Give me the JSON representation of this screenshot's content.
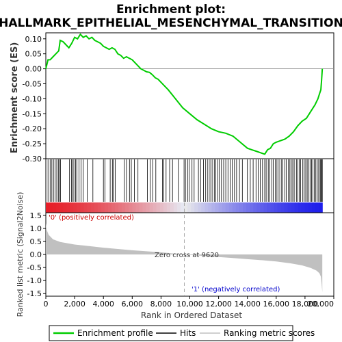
{
  "chart_data": {
    "type": "line",
    "title": "Enrichment plot:",
    "subtitle": "HALLMARK_EPITHELIAL_MESENCHYMAL_TRANSITION",
    "xlabel": "Rank in Ordered Dataset",
    "n_ranks": 19200,
    "xlim": [
      0,
      20000
    ],
    "x_ticks": [
      0,
      2000,
      4000,
      6000,
      8000,
      10000,
      12000,
      14000,
      16000,
      18000,
      20000
    ],
    "x_tick_labels": [
      "0",
      "2,000",
      "4,000",
      "6,000",
      "8,000",
      "10,000",
      "12,000",
      "14,000",
      "16,000",
      "18,000",
      "20,000"
    ],
    "es_panel": {
      "ylabel": "Enrichment score (ES)",
      "ylim": [
        -0.3,
        0.12
      ],
      "y_ticks": [
        -0.3,
        -0.25,
        -0.2,
        -0.15,
        -0.1,
        -0.05,
        0.0,
        0.05,
        0.1
      ],
      "y_tick_labels": [
        "-0.30",
        "-0.25",
        "-0.20",
        "-0.15",
        "-0.10",
        "-0.05",
        "0.00",
        "0.05",
        "0.10"
      ],
      "series_name": "Enrichment profile",
      "color": "#00cc00",
      "x": [
        0,
        150,
        300,
        500,
        700,
        900,
        1000,
        1200,
        1400,
        1600,
        1800,
        2000,
        2200,
        2400,
        2600,
        2800,
        3000,
        3200,
        3400,
        3600,
        3800,
        4000,
        4200,
        4400,
        4600,
        4800,
        5000,
        5200,
        5400,
        5600,
        5800,
        6000,
        6200,
        6400,
        6600,
        6800,
        7000,
        7200,
        7400,
        7600,
        7800,
        8000,
        8500,
        9000,
        9500,
        10000,
        10500,
        11000,
        11500,
        12000,
        12500,
        13000,
        13500,
        14000,
        14300,
        14600,
        14900,
        15200,
        15400,
        15600,
        15800,
        16000,
        16300,
        16600,
        16900,
        17200,
        17500,
        17800,
        18100,
        18300,
        18500,
        18700,
        18900,
        19000,
        19100,
        19150,
        19200
      ],
      "y": [
        0.0,
        0.03,
        0.03,
        0.04,
        0.05,
        0.06,
        0.095,
        0.09,
        0.08,
        0.07,
        0.085,
        0.105,
        0.1,
        0.115,
        0.105,
        0.11,
        0.1,
        0.105,
        0.095,
        0.09,
        0.085,
        0.075,
        0.07,
        0.065,
        0.07,
        0.065,
        0.05,
        0.045,
        0.035,
        0.04,
        0.035,
        0.03,
        0.02,
        0.01,
        0.0,
        -0.005,
        -0.01,
        -0.012,
        -0.02,
        -0.03,
        -0.035,
        -0.045,
        -0.07,
        -0.1,
        -0.13,
        -0.15,
        -0.17,
        -0.185,
        -0.2,
        -0.21,
        -0.215,
        -0.225,
        -0.245,
        -0.265,
        -0.27,
        -0.275,
        -0.28,
        -0.285,
        -0.27,
        -0.265,
        -0.25,
        -0.245,
        -0.24,
        -0.235,
        -0.225,
        -0.21,
        -0.19,
        -0.175,
        -0.165,
        -0.15,
        -0.135,
        -0.12,
        -0.1,
        -0.085,
        -0.07,
        -0.04,
        0.0
      ]
    },
    "hits_panel": {
      "series_name": "Hits",
      "hit_ranks": [
        150,
        300,
        420,
        530,
        640,
        760,
        870,
        950,
        1020,
        1650,
        1780,
        1870,
        1950,
        2060,
        2150,
        2300,
        2450,
        2600,
        2880,
        3270,
        4000,
        4100,
        4470,
        4620,
        4700,
        4820,
        5450,
        5600,
        5810,
        5940,
        6150,
        6400,
        7050,
        7250,
        7420,
        7640,
        8100,
        8200,
        8350,
        8600,
        8800,
        9200,
        9600,
        9700,
        9850,
        9950,
        10150,
        10300,
        10600,
        10750,
        10950,
        11100,
        11250,
        11400,
        11550,
        11700,
        11800,
        11950,
        12050,
        12200,
        12350,
        12500,
        12650,
        12800,
        12950,
        13100,
        13250,
        13450,
        13650,
        14000,
        14200,
        14400,
        14600,
        14750,
        14900,
        15050,
        15200,
        15300,
        15450,
        15550,
        15700,
        15800,
        15950,
        16050,
        16200,
        16350,
        16450,
        16600,
        16700,
        16850,
        16950,
        17050,
        17150,
        17250,
        17400,
        17500,
        17600,
        17700,
        17850,
        17950,
        18050,
        18150,
        18250,
        18350,
        18450,
        18550,
        18650,
        18750,
        18850,
        18950,
        19050,
        19100,
        19150,
        19200
      ]
    },
    "rank_metric_panel": {
      "ylabel": "Ranked list metric (Signal2Noise)",
      "series_name": "Ranking metric scores",
      "ylim": [
        -1.6,
        1.6
      ],
      "y_ticks": [
        -1.5,
        -1.0,
        -0.5,
        0.0,
        0.5,
        1.0,
        1.5
      ],
      "y_tick_labels": [
        "-1.5",
        "-1.0",
        "-0.5",
        "0.0",
        "0.5",
        "1.0",
        "1.5"
      ],
      "x": [
        0,
        50,
        200,
        500,
        1000,
        2000,
        3000,
        4000,
        5000,
        6000,
        7000,
        8000,
        9000,
        9620,
        10000,
        11000,
        12000,
        13000,
        14000,
        15000,
        16000,
        17000,
        17800,
        18400,
        18800,
        19000,
        19100,
        19150,
        19200
      ],
      "y": [
        1.2,
        0.95,
        0.75,
        0.58,
        0.48,
        0.38,
        0.32,
        0.26,
        0.21,
        0.16,
        0.12,
        0.08,
        0.03,
        0.0,
        -0.02,
        -0.06,
        -0.1,
        -0.14,
        -0.18,
        -0.22,
        -0.27,
        -0.34,
        -0.42,
        -0.52,
        -0.62,
        -0.72,
        -0.85,
        -1.1,
        -1.45
      ],
      "positive_label": "'0' (positively correlated)",
      "negative_label": "'1' (negatively correlated)",
      "zero_cross_label": "Zero cross at 9620",
      "zero_cross": 9620
    },
    "legend": {
      "placement": "bottom",
      "items": [
        {
          "label": "Enrichment profile",
          "color": "#00cc00"
        },
        {
          "label": "Hits",
          "color": "#000000"
        },
        {
          "label": "Ranking metric scores",
          "color": "#c0c0c0"
        }
      ]
    }
  }
}
